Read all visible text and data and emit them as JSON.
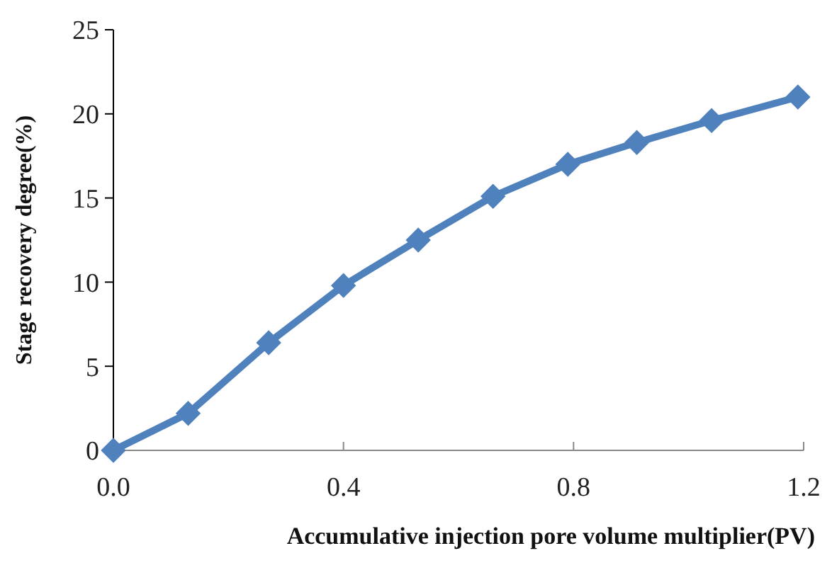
{
  "chart_data": {
    "type": "line",
    "xlabel": "Accumulative injection pore volume multiplier(PV)",
    "ylabel": "Stage recovery degree(%)",
    "x": [
      0,
      0.13,
      0.27,
      0.4,
      0.53,
      0.66,
      0.79,
      0.91,
      1.04,
      1.19
    ],
    "series": [
      {
        "color": "#4f81bd",
        "values": [
          0,
          2.2,
          6.4,
          9.8,
          12.5,
          15.1,
          17.0,
          18.3,
          19.6,
          21.0
        ]
      }
    ],
    "xlim": [
      0,
      1.2
    ],
    "xticks": [
      {
        "value": 0,
        "label": "0.0"
      },
      0.4,
      0.8,
      1.2
    ],
    "ylim": [
      0,
      25
    ],
    "yticks": [
      0,
      5,
      10,
      15,
      20,
      25
    ],
    "grid": false,
    "marker": "diamond",
    "line_style": "solid"
  }
}
